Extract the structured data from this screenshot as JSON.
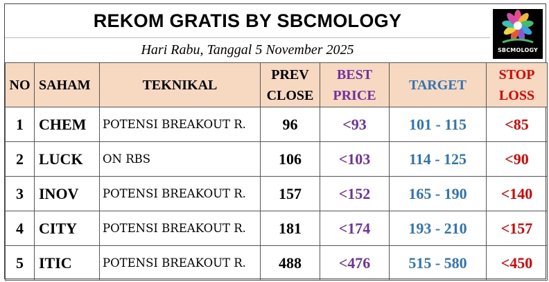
{
  "title": "REKOM GRATIS BY SBCMOLOGY",
  "subtitle": "Hari Rabu, Tanggal 5 November 2025",
  "logo": {
    "text": "SBCMOLOGY"
  },
  "colors": {
    "header_bg": "#f7d9c2",
    "best_price": "#7030a0",
    "target": "#2e75b6",
    "stop_loss": "#e00000"
  },
  "headers": {
    "no": "NO",
    "saham": "SAHAM",
    "teknikal": "TEKNIKAL",
    "prev_close_1": "PREV",
    "prev_close_2": "CLOSE",
    "best_price_1": "BEST",
    "best_price_2": "PRICE",
    "target": "TARGET",
    "stop_loss_1": "STOP",
    "stop_loss_2": "LOSS"
  },
  "rows": [
    {
      "no": "1",
      "saham": "CHEM",
      "teknikal": "POTENSI BREAKOUT R.",
      "prev_close": "96",
      "best_price": "<93",
      "target": "101 - 115",
      "stop_loss": "<85"
    },
    {
      "no": "2",
      "saham": "LUCK",
      "teknikal": "ON RBS",
      "prev_close": "106",
      "best_price": "<103",
      "target": "114 - 125",
      "stop_loss": "<90"
    },
    {
      "no": "3",
      "saham": "INOV",
      "teknikal": "POTENSI BREAKOUT R.",
      "prev_close": "157",
      "best_price": "<152",
      "target": "165 - 190",
      "stop_loss": "<140"
    },
    {
      "no": "4",
      "saham": "CITY",
      "teknikal": "POTENSI BREAKOUT R.",
      "prev_close": "181",
      "best_price": "<174",
      "target": "193 - 210",
      "stop_loss": "<157"
    },
    {
      "no": "5",
      "saham": "ITIC",
      "teknikal": "POTENSI BREAKOUT R.",
      "prev_close": "488",
      "best_price": "<476",
      "target": "515 - 580",
      "stop_loss": "<450"
    }
  ]
}
